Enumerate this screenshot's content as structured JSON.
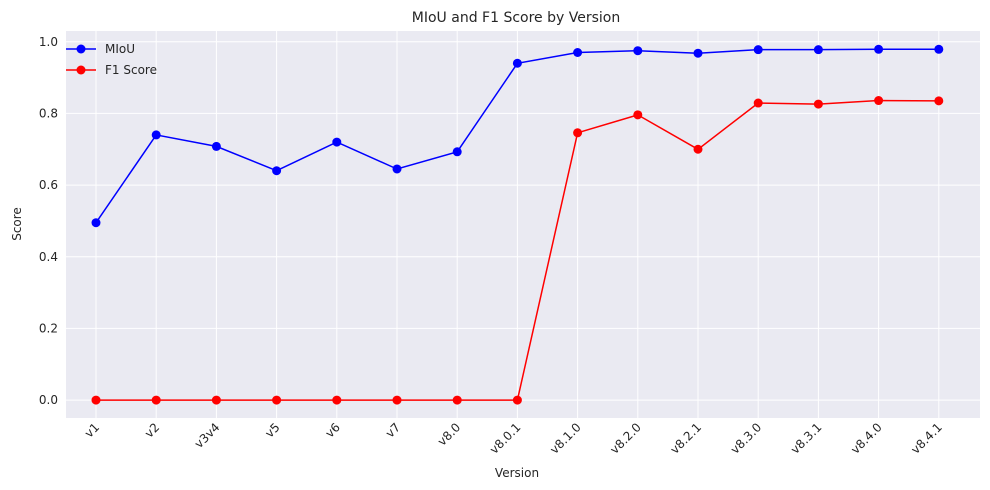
{
  "chart_data": {
    "type": "line",
    "title": "MIoU and F1 Score by Version",
    "xlabel": "Version",
    "ylabel": "Score",
    "categories": [
      "v1",
      "v2",
      "v3v4",
      "v5",
      "v6",
      "v7",
      "v8.0",
      "v8.0.1",
      "v8.1.0",
      "v8.2.0",
      "v8.2.1",
      "v8.3.0",
      "v8.3.1",
      "v8.4.0",
      "v8.4.1"
    ],
    "ylim": [
      -0.05,
      1.03
    ],
    "yticks": [
      "0.0",
      "0.2",
      "0.4",
      "0.6",
      "0.8",
      "1.0"
    ],
    "grid": true,
    "legend_position": "top-left",
    "series": [
      {
        "name": "MIoU",
        "color": "#0000ff",
        "marker": "circle",
        "values": [
          0.495,
          0.74,
          0.708,
          0.64,
          0.72,
          0.645,
          0.693,
          0.94,
          0.97,
          0.975,
          0.968,
          0.978,
          0.978,
          0.979,
          0.979
        ]
      },
      {
        "name": "F1 Score",
        "color": "#ff0000",
        "marker": "circle",
        "values": [
          0.0,
          0.0,
          0.0,
          0.0,
          0.0,
          0.0,
          0.0,
          0.0,
          0.746,
          0.796,
          0.7,
          0.829,
          0.826,
          0.836,
          0.835
        ]
      }
    ]
  }
}
